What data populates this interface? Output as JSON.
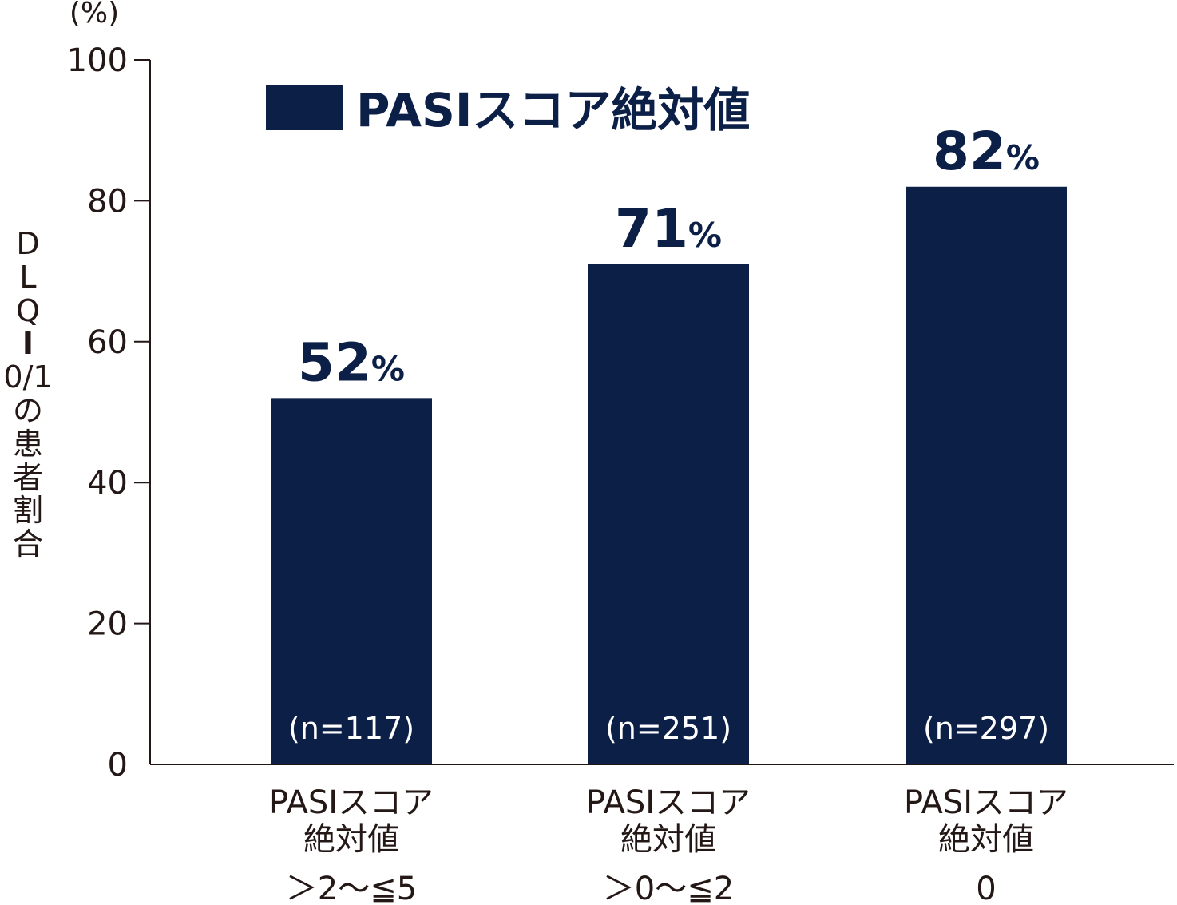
{
  "chart_data": {
    "type": "bar",
    "y_unit_label": "(%)",
    "ylabel": "DLQI0/1の患者割合",
    "ylabel_chars": [
      "D",
      "L",
      "Q",
      "I",
      "0/1",
      "の",
      "患",
      "者",
      "割",
      "合"
    ],
    "ylim": [
      0,
      100
    ],
    "yticks": [
      0,
      20,
      40,
      60,
      80,
      100
    ],
    "grid": false,
    "legend": {
      "position": "top-left",
      "label": "PASIスコア絶対値"
    },
    "series": [
      {
        "name": "PASIスコア絶対値",
        "values": [
          52,
          71,
          82
        ]
      }
    ],
    "value_labels": [
      "52",
      "71",
      "82"
    ],
    "value_suffix": "%",
    "n_labels": [
      "(n=117)",
      "(n=251)",
      "(n=297)"
    ],
    "categories": [
      [
        "PASIスコア",
        "絶対値",
        "＞2～≦5"
      ],
      [
        "PASIスコア",
        "絶対値",
        "＞0～≦2"
      ],
      [
        "PASIスコア",
        "絶対値",
        "0"
      ]
    ],
    "colors": {
      "bar": "#0c1f47",
      "axis": "#231815",
      "n_label": "#ffffff",
      "value_label": "#0c1f47"
    }
  }
}
